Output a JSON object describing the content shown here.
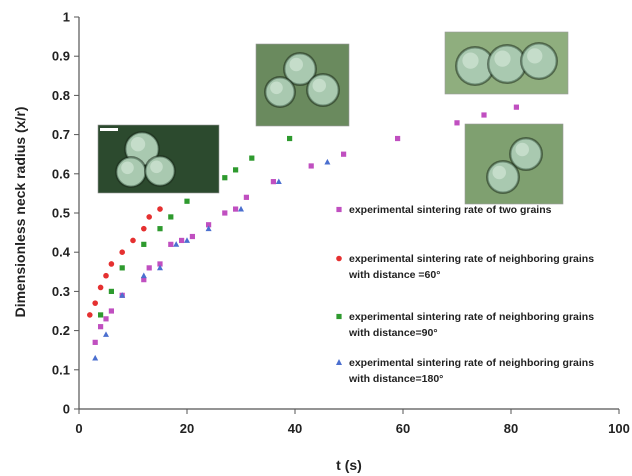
{
  "chart_data": {
    "type": "scatter",
    "xlabel": "t (s)",
    "ylabel": "Dimensionless neck radius (x/r)",
    "xlim": [
      0,
      100
    ],
    "ylim": [
      0,
      1
    ],
    "xticks": [
      0,
      20,
      40,
      60,
      80,
      100
    ],
    "yticks": [
      0,
      0.1,
      0.2,
      0.3,
      0.4,
      0.5,
      0.6,
      0.7,
      0.8,
      0.9,
      1
    ],
    "grid": false,
    "legend_position": "right",
    "series": [
      {
        "name": "experimental sintering rate of two grains",
        "color": "#c04fc0",
        "marker": "square",
        "points": [
          [
            3,
            0.17
          ],
          [
            4,
            0.21
          ],
          [
            5,
            0.23
          ],
          [
            6,
            0.25
          ],
          [
            8,
            0.29
          ],
          [
            12,
            0.33
          ],
          [
            13,
            0.36
          ],
          [
            15,
            0.37
          ],
          [
            17,
            0.42
          ],
          [
            19,
            0.43
          ],
          [
            21,
            0.44
          ],
          [
            24,
            0.47
          ],
          [
            27,
            0.5
          ],
          [
            29,
            0.51
          ],
          [
            31,
            0.54
          ],
          [
            36,
            0.58
          ],
          [
            43,
            0.62
          ],
          [
            49,
            0.65
          ],
          [
            59,
            0.69
          ],
          [
            70,
            0.73
          ],
          [
            75,
            0.75
          ],
          [
            81,
            0.77
          ]
        ]
      },
      {
        "name": "experimental sintering rate of neighboring grains with distance =60°",
        "color": "#e53030",
        "marker": "circle",
        "points": [
          [
            2,
            0.24
          ],
          [
            3,
            0.27
          ],
          [
            4,
            0.31
          ],
          [
            5,
            0.34
          ],
          [
            6,
            0.37
          ],
          [
            8,
            0.4
          ],
          [
            10,
            0.43
          ],
          [
            12,
            0.46
          ],
          [
            13,
            0.49
          ],
          [
            15,
            0.51
          ]
        ]
      },
      {
        "name": "experimental sintering rate of neighboring grains with distance=90°",
        "color": "#2e9a2e",
        "marker": "square",
        "points": [
          [
            4,
            0.24
          ],
          [
            6,
            0.3
          ],
          [
            8,
            0.36
          ],
          [
            12,
            0.42
          ],
          [
            15,
            0.46
          ],
          [
            17,
            0.49
          ],
          [
            20,
            0.53
          ],
          [
            27,
            0.59
          ],
          [
            29,
            0.61
          ],
          [
            32,
            0.64
          ],
          [
            39,
            0.69
          ]
        ]
      },
      {
        "name": "experimental sintering rate of neighboring grains with distance=180°",
        "color": "#4b6fcf",
        "marker": "triangle",
        "points": [
          [
            3,
            0.13
          ],
          [
            5,
            0.19
          ],
          [
            8,
            0.29
          ],
          [
            12,
            0.34
          ],
          [
            15,
            0.36
          ],
          [
            18,
            0.42
          ],
          [
            20,
            0.43
          ],
          [
            24,
            0.46
          ],
          [
            30,
            0.51
          ],
          [
            37,
            0.58
          ],
          [
            46,
            0.63
          ]
        ]
      }
    ],
    "legend_lines": [
      [
        "experimental sintering rate of two grains"
      ],
      [
        "experimental sintering rate of neighboring grains",
        "with distance =60°"
      ],
      [
        "experimental sintering rate of neighboring grains",
        "with distance=90°"
      ],
      [
        "experimental sintering rate of neighboring grains",
        "with distance=180°"
      ]
    ]
  }
}
